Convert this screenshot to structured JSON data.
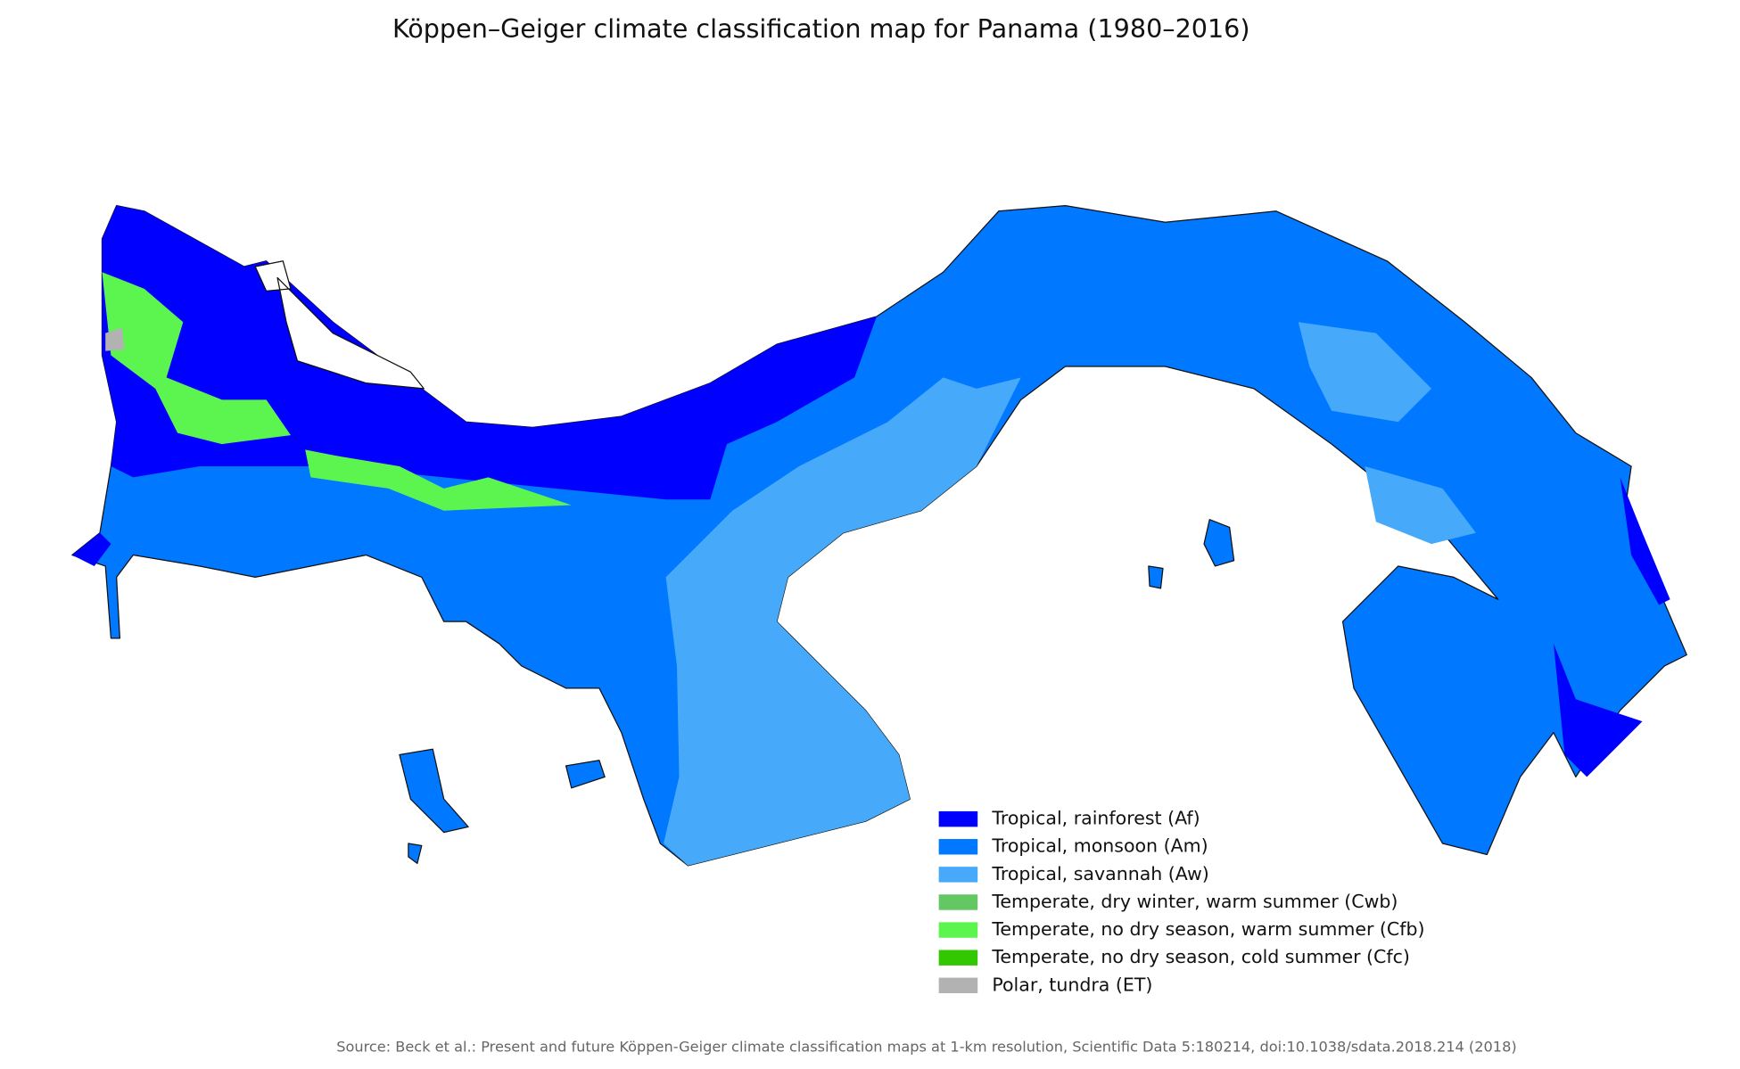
{
  "title": "Köppen–Geiger climate classification map for Panama (1980–2016)",
  "legend": {
    "items": [
      {
        "label": "Tropical, rainforest (Af)",
        "color": "#0000fe"
      },
      {
        "label": "Tropical, monsoon (Am)",
        "color": "#0078ff"
      },
      {
        "label": "Tropical, savannah (Aw)",
        "color": "#46a9fa"
      },
      {
        "label": "Temperate, dry winter, warm summer (Cwb)",
        "color": "#63c764"
      },
      {
        "label": "Temperate, no dry season, warm summer (Cfb)",
        "color": "#5cf550"
      },
      {
        "label": "Temperate, no dry season, cold summer (Cfc)",
        "color": "#33c701"
      },
      {
        "label": "Polar, tundra (ET)",
        "color": "#b2b2b2"
      }
    ]
  },
  "source": "Source: Beck et al.: Present and future Köppen-Geiger climate classification maps at 1-km resolution, Scientific Data 5:180214, doi:10.1038/sdata.2018.214 (2018)"
}
